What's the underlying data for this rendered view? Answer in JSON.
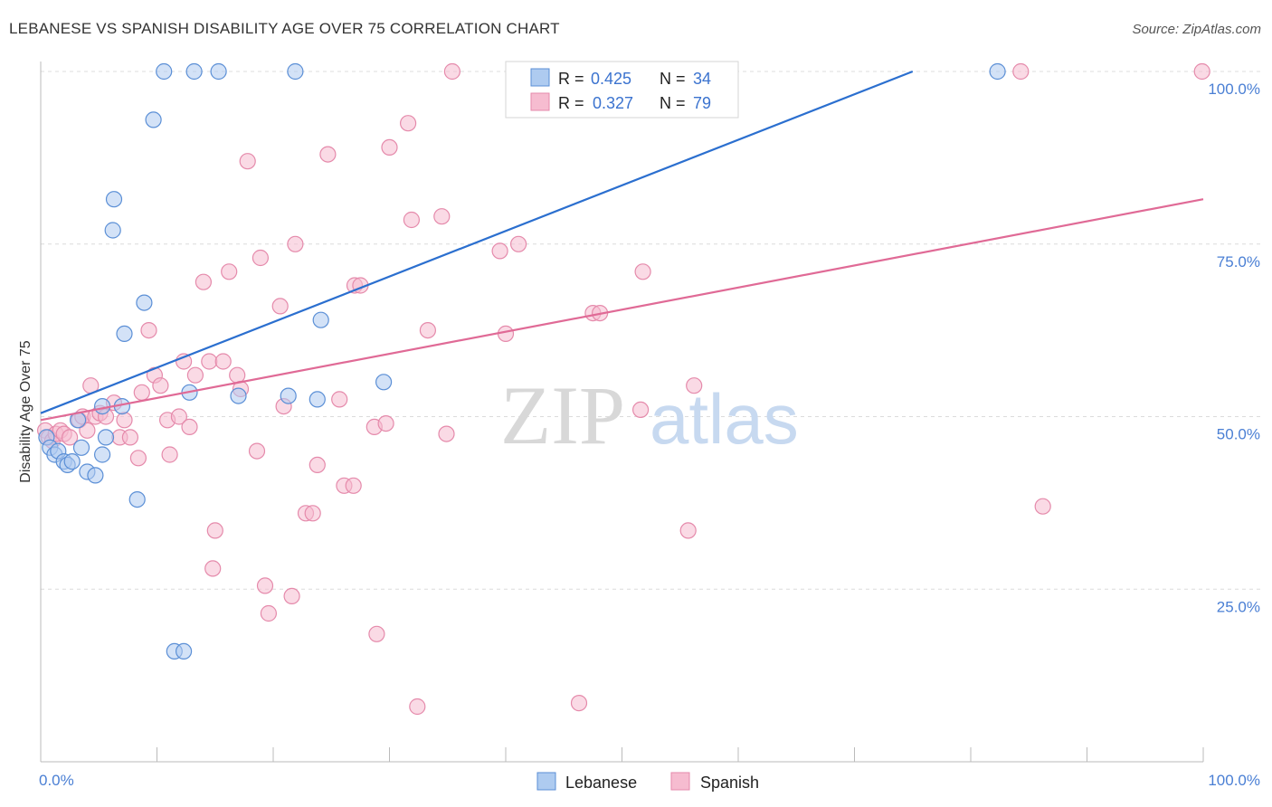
{
  "title": "LEBANESE VS SPANISH DISABILITY AGE OVER 75 CORRELATION CHART",
  "source": "Source: ZipAtlas.com",
  "colors": {
    "lebanese_fill": "#aecbf0",
    "lebanese_stroke": "#5b8fd6",
    "lebanese_line": "#2b6fcf",
    "spanish_fill": "#f6bcd0",
    "spanish_stroke": "#e58aab",
    "spanish_line": "#e06a96",
    "grid": "#dcdcdc",
    "axis_text": "#4a7fd4"
  },
  "watermark": {
    "part1": "ZIP",
    "part2": "atlas"
  },
  "legend": {
    "rows": [
      {
        "r_label": "R = ",
        "r_value": "0.425",
        "n_label": "N = ",
        "n_value": "34"
      },
      {
        "r_label": "R = ",
        "r_value": "0.327",
        "n_label": "N = ",
        "n_value": "79"
      }
    ]
  },
  "bottom_legend": [
    "Lebanese",
    "Spanish"
  ],
  "chart_data": {
    "type": "scatter",
    "title": "LEBANESE VS SPANISH DISABILITY AGE OVER 75 CORRELATION CHART",
    "xlabel": "",
    "ylabel": "Disability Age Over 75",
    "xlim": [
      0,
      100
    ],
    "ylim": [
      0,
      100
    ],
    "x_tick_labels": [
      "0.0%",
      "100.0%"
    ],
    "y_ticks": [
      25,
      50,
      75,
      100
    ],
    "y_tick_labels": [
      "25.0%",
      "50.0%",
      "75.0%",
      "100.0%"
    ],
    "grid": true,
    "series": [
      {
        "name": "Lebanese",
        "r": 0.425,
        "n": 34,
        "trend": {
          "x": [
            0,
            75
          ],
          "y": [
            50.5,
            100
          ]
        },
        "points": [
          [
            0.5,
            47
          ],
          [
            0.8,
            45.5
          ],
          [
            1.2,
            44.5
          ],
          [
            1.5,
            45
          ],
          [
            2,
            43.5
          ],
          [
            2.3,
            43
          ],
          [
            2.7,
            43.5
          ],
          [
            3.2,
            49.5
          ],
          [
            3.5,
            45.5
          ],
          [
            4,
            42
          ],
          [
            4.7,
            41.5
          ],
          [
            5.3,
            51.5
          ],
          [
            5.6,
            47
          ],
          [
            5.3,
            44.5
          ],
          [
            6.3,
            81.5
          ],
          [
            6.2,
            77
          ],
          [
            7,
            51.5
          ],
          [
            7.2,
            62
          ],
          [
            8.3,
            38
          ],
          [
            8.9,
            66.5
          ],
          [
            9.7,
            93
          ],
          [
            10.6,
            100
          ],
          [
            11.5,
            16
          ],
          [
            12.3,
            16
          ],
          [
            12.8,
            53.5
          ],
          [
            13.2,
            100
          ],
          [
            15.3,
            100
          ],
          [
            17,
            53
          ],
          [
            21.3,
            53
          ],
          [
            21.9,
            100
          ],
          [
            23.8,
            52.5
          ],
          [
            24.1,
            64
          ],
          [
            29.5,
            55
          ],
          [
            82.3,
            100
          ]
        ]
      },
      {
        "name": "Spanish",
        "r": 0.327,
        "n": 79,
        "trend": {
          "x": [
            0,
            100
          ],
          "y": [
            49.5,
            81.5
          ]
        },
        "points": [
          [
            0.4,
            48
          ],
          [
            0.7,
            47
          ],
          [
            1,
            46.5
          ],
          [
            1.3,
            47.5
          ],
          [
            1.7,
            48
          ],
          [
            2,
            47.5
          ],
          [
            2.5,
            47
          ],
          [
            3.3,
            49.5
          ],
          [
            3.6,
            50
          ],
          [
            4,
            48
          ],
          [
            4.3,
            54.5
          ],
          [
            4.7,
            50
          ],
          [
            5.1,
            50.5
          ],
          [
            5.6,
            50
          ],
          [
            6.3,
            52
          ],
          [
            6.8,
            47
          ],
          [
            7.2,
            49.5
          ],
          [
            7.7,
            47
          ],
          [
            8.4,
            44
          ],
          [
            8.7,
            53.5
          ],
          [
            9.3,
            62.5
          ],
          [
            9.8,
            56
          ],
          [
            10.3,
            54.5
          ],
          [
            10.9,
            49.5
          ],
          [
            11.1,
            44.5
          ],
          [
            11.9,
            50
          ],
          [
            12.3,
            58
          ],
          [
            12.8,
            48.5
          ],
          [
            13.3,
            56
          ],
          [
            14,
            69.5
          ],
          [
            14.5,
            58
          ],
          [
            15,
            33.5
          ],
          [
            14.8,
            28
          ],
          [
            15.7,
            58
          ],
          [
            16.2,
            71
          ],
          [
            16.9,
            56
          ],
          [
            17.2,
            54
          ],
          [
            17.8,
            87
          ],
          [
            18.6,
            45
          ],
          [
            18.9,
            73
          ],
          [
            19.3,
            25.5
          ],
          [
            19.6,
            21.5
          ],
          [
            20.6,
            66
          ],
          [
            20.9,
            51.5
          ],
          [
            21.6,
            24
          ],
          [
            21.9,
            75
          ],
          [
            22.8,
            36
          ],
          [
            23.4,
            36
          ],
          [
            23.8,
            43
          ],
          [
            24.7,
            88
          ],
          [
            25.7,
            52.5
          ],
          [
            26.1,
            40
          ],
          [
            26.9,
            40
          ],
          [
            27,
            69
          ],
          [
            27.5,
            69
          ],
          [
            28.7,
            48.5
          ],
          [
            28.9,
            18.5
          ],
          [
            29.7,
            49
          ],
          [
            30,
            89
          ],
          [
            31.6,
            92.5
          ],
          [
            31.9,
            78.5
          ],
          [
            32.4,
            8
          ],
          [
            33.3,
            62.5
          ],
          [
            34.5,
            79
          ],
          [
            34.9,
            47.5
          ],
          [
            35.4,
            100
          ],
          [
            39.5,
            74
          ],
          [
            40,
            62
          ],
          [
            41.1,
            75
          ],
          [
            46.3,
            8.5
          ],
          [
            47.5,
            65
          ],
          [
            48.1,
            65
          ],
          [
            51.6,
            51
          ],
          [
            51.8,
            71
          ],
          [
            55.7,
            33.5
          ],
          [
            56.2,
            54.5
          ],
          [
            84.3,
            100
          ],
          [
            86.2,
            37
          ],
          [
            99.9,
            100
          ]
        ]
      }
    ]
  }
}
